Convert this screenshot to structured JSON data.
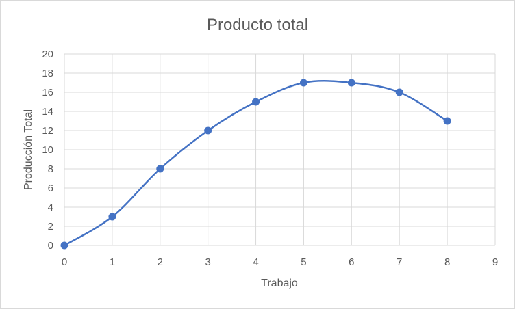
{
  "chart_data": {
    "type": "scatter",
    "title": "Producto total",
    "xlabel": "Trabajo",
    "ylabel": "Producción Total",
    "xlim": [
      0,
      9
    ],
    "ylim": [
      0,
      20
    ],
    "x_ticks": [
      0,
      1,
      2,
      3,
      4,
      5,
      6,
      7,
      8,
      9
    ],
    "y_ticks": [
      0,
      2,
      4,
      6,
      8,
      10,
      12,
      14,
      16,
      18,
      20
    ],
    "grid": true,
    "smooth_lines": true,
    "series": [
      {
        "color": "#4472c4",
        "x": [
          0,
          1,
          2,
          3,
          4,
          5,
          6,
          7,
          8
        ],
        "values": [
          0,
          3,
          8,
          12,
          15,
          17,
          17,
          16,
          13
        ]
      }
    ]
  }
}
